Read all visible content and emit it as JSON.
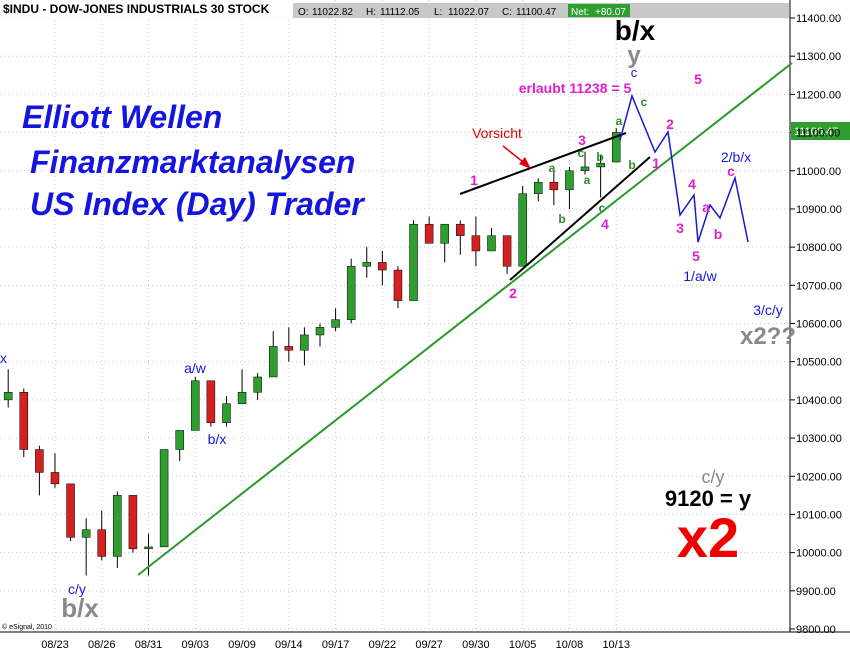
{
  "chart_data": {
    "type": "candlestick",
    "title": "$INDU - DOW-JONES INDUSTRIALS 30 STOCK",
    "quote_labels": [
      "O:",
      "H:",
      "L:",
      "C:"
    ],
    "net_label": "Net:",
    "net": {
      "value": 80.07,
      "label": "+80.07"
    },
    "source": "© eSignal, 2010",
    "categories": [
      null,
      null,
      null,
      "08/23",
      null,
      null,
      "08/26",
      null,
      null,
      "08/31",
      null,
      null,
      "09/03",
      null,
      null,
      "09/09",
      null,
      null,
      "09/14",
      null,
      null,
      "09/17",
      null,
      null,
      "09/22",
      null,
      null,
      "09/27",
      null,
      null,
      "09/30",
      null,
      null,
      "10/05",
      null,
      null,
      "10/08",
      null,
      null,
      "10/13"
    ],
    "open": [
      10400,
      10420,
      10270,
      10210,
      10180,
      10040,
      10060,
      9990,
      10150,
      10010,
      10015,
      10270,
      10320,
      10450,
      10340,
      10390,
      10420,
      10460,
      10540,
      10530,
      10570,
      10590,
      10610,
      10750,
      10760,
      10740,
      10660,
      10860,
      10810,
      10860,
      10830,
      10790,
      10830,
      10750,
      10940,
      10970,
      10950,
      11000,
      11010,
      11022.82
    ],
    "high": [
      10480,
      10430,
      10280,
      10260,
      10180,
      10090,
      10110,
      10160,
      10150,
      10050,
      10270,
      10320,
      10460,
      10450,
      10410,
      10480,
      10470,
      10580,
      10590,
      10590,
      10600,
      10640,
      10770,
      10800,
      10790,
      10750,
      10870,
      10880,
      10860,
      10870,
      10880,
      10850,
      10830,
      10960,
      10980,
      11000,
      11010,
      11050,
      11040,
      11112.05
    ],
    "low": [
      10380,
      10250,
      10150,
      10170,
      10030,
      9940,
      9980,
      9960,
      10000,
      9940,
      10015,
      10240,
      10320,
      10330,
      10330,
      10390,
      10400,
      10460,
      10500,
      10490,
      10540,
      10580,
      10600,
      10720,
      10700,
      10640,
      10660,
      10810,
      10760,
      10780,
      10750,
      10790,
      10730,
      10750,
      10920,
      10910,
      10900,
      10990,
      10930,
      11022.07
    ],
    "close": [
      10420,
      10270,
      10210,
      10180,
      10040,
      10060,
      9990,
      10150,
      10010,
      10015,
      10270,
      10320,
      10450,
      10340,
      10390,
      10420,
      10460,
      10540,
      10530,
      10570,
      10590,
      10610,
      10750,
      10760,
      10740,
      10660,
      10860,
      10810,
      10860,
      10830,
      10790,
      10830,
      10750,
      10940,
      10970,
      10950,
      11000,
      11010,
      11020,
      11100.47
    ],
    "up_color": "#2e9e2e",
    "down_color": "#d42020",
    "ylim": [
      9800,
      11400
    ],
    "yticks": [
      {
        "value": 9800,
        "label": "9800.00"
      },
      {
        "value": 9900,
        "label": "9900.00"
      },
      {
        "value": 10000,
        "label": "10000.00"
      },
      {
        "value": 10100,
        "label": "10100.00"
      },
      {
        "value": 10200,
        "label": "10200.00"
      },
      {
        "value": 10300,
        "label": "10300.00"
      },
      {
        "value": 10400,
        "label": "10400.00"
      },
      {
        "value": 10500,
        "label": "10500.00"
      },
      {
        "value": 10600,
        "label": "10600.00"
      },
      {
        "value": 10700,
        "label": "10700.00"
      },
      {
        "value": 10800,
        "label": "10800.00"
      },
      {
        "value": 10900,
        "label": "10900.00"
      },
      {
        "value": 11000,
        "label": "11000.00"
      },
      {
        "value": 11100,
        "label": "11100.00"
      },
      {
        "value": 11200,
        "label": "11200.00"
      },
      {
        "value": 11300,
        "label": "11300.00"
      },
      {
        "value": 11400,
        "label": "11400.00"
      }
    ],
    "annotations": [
      "Elliott Wellen",
      "Finanzmarktanalysen",
      "US Index (Day) Trader",
      "b/x",
      "y",
      "c",
      "erlaubt 11238 = 5",
      "5",
      "Vorsicht",
      "1",
      "2",
      "3",
      "4",
      "a",
      "c",
      "b",
      "a",
      "b",
      "c",
      "a",
      "b",
      "c",
      "2",
      "1",
      "4",
      "3",
      "a",
      "b",
      "c",
      "5",
      "2/b/x",
      "1/a/w",
      "3/c/y",
      "x2??",
      "c/y",
      "9120 = y",
      "x2",
      "a/w",
      "b/x",
      "c/y",
      "b/x",
      "x"
    ]
  }
}
